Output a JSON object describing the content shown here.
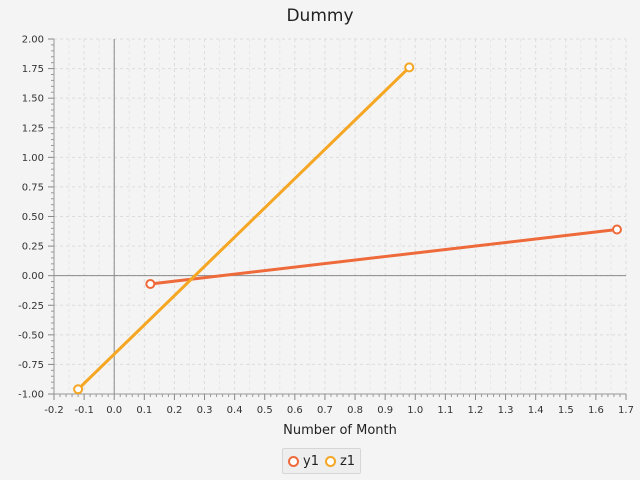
{
  "chart_data": {
    "type": "line",
    "title": "Dummy",
    "xlabel": "Number of Month",
    "ylabel": "",
    "xlim": [
      -0.2,
      1.7
    ],
    "ylim": [
      -1.0,
      2.0
    ],
    "x_ticks": [
      "-0.2",
      "-0.1",
      "0.0",
      "0.1",
      "0.2",
      "0.3",
      "0.4",
      "0.5",
      "0.6",
      "0.7",
      "0.8",
      "0.9",
      "1.0",
      "1.1",
      "1.2",
      "1.3",
      "1.4",
      "1.5",
      "1.6",
      "1.7"
    ],
    "y_ticks": [
      "-1.00",
      "-0.75",
      "-0.50",
      "-0.25",
      "0.00",
      "0.25",
      "0.50",
      "0.75",
      "1.00",
      "1.25",
      "1.50",
      "1.75",
      "2.00"
    ],
    "grid": true,
    "legend_position": "bottom",
    "series": [
      {
        "name": "y1",
        "color": "#ee6a3a",
        "points": [
          {
            "x": 0.12,
            "y": -0.07
          },
          {
            "x": 1.67,
            "y": 0.39
          }
        ]
      },
      {
        "name": "z1",
        "color": "#f5a623",
        "points": [
          {
            "x": -0.12,
            "y": -0.96
          },
          {
            "x": 0.98,
            "y": 1.76
          }
        ]
      }
    ]
  }
}
